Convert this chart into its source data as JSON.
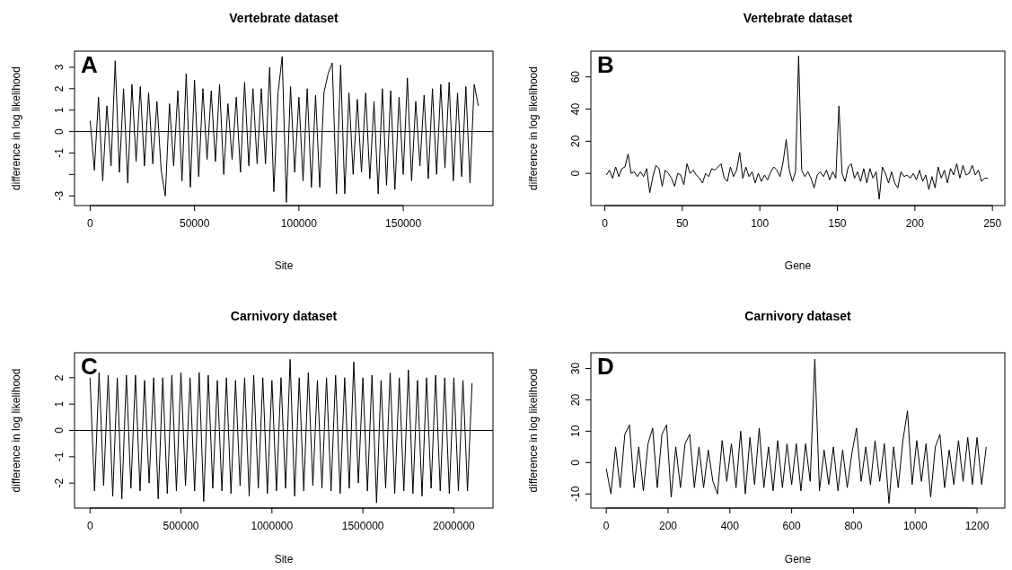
{
  "chart_data": [
    {
      "type": "line",
      "title": "Vertebrate dataset",
      "xlabel": "Site",
      "ylabel": "difference in log likelihood",
      "annotations": [
        "A"
      ],
      "xlim": [
        -7500,
        193000
      ],
      "xticks": [
        0,
        50000,
        100000,
        150000
      ],
      "ylim": [
        -3.45,
        3.75
      ],
      "yticks": [
        -3,
        {
          "value": -2,
          "label": null
        },
        -1,
        0,
        1,
        2,
        3
      ],
      "ref_lines": [
        {
          "axis": "y",
          "value": 0,
          "color": "#000000"
        }
      ],
      "series": [
        {
          "color": "#000000",
          "x": [
            0,
            2000,
            4000,
            6000,
            8000,
            10000,
            12000,
            14000,
            16000,
            18000,
            20000,
            22000,
            24000,
            26000,
            28000,
            30000,
            32000,
            34000,
            36000,
            38000,
            40000,
            42000,
            44000,
            46000,
            48000,
            50000,
            52000,
            54000,
            56000,
            58000,
            60000,
            62000,
            64000,
            66000,
            68000,
            70000,
            72000,
            74000,
            76000,
            78000,
            80000,
            82000,
            84000,
            86000,
            88000,
            90000,
            92000,
            94000,
            96000,
            98000,
            100000,
            102000,
            104000,
            106000,
            108000,
            110000,
            112000,
            114000,
            116000,
            118000,
            120000,
            122000,
            124000,
            126000,
            128000,
            130000,
            132000,
            134000,
            136000,
            138000,
            140000,
            142000,
            144000,
            146000,
            148000,
            150000,
            152000,
            154000,
            156000,
            158000,
            160000,
            162000,
            164000,
            166000,
            168000,
            170000,
            172000,
            174000,
            176000,
            178000,
            180000,
            182000,
            184000,
            186000
          ],
          "values": [
            0.5,
            -1.8,
            1.6,
            -2.3,
            1.2,
            -1.6,
            3.3,
            -1.9,
            2.0,
            -2.4,
            2.2,
            -1.4,
            2.1,
            -1.6,
            1.8,
            -1.5,
            1.4,
            -1.8,
            -3.0,
            1.3,
            -1.6,
            1.9,
            -2.3,
            2.7,
            -2.6,
            2.4,
            -2.1,
            2.0,
            -1.3,
            1.9,
            -1.4,
            2.2,
            -2.0,
            1.3,
            -1.3,
            1.6,
            -1.9,
            2.3,
            -1.6,
            2.0,
            -1.5,
            2.0,
            -1.5,
            3.0,
            -2.8,
            1.8,
            3.5,
            -3.3,
            2.1,
            -1.9,
            1.6,
            -2.3,
            2.0,
            -2.6,
            1.7,
            -2.6,
            1.8,
            2.7,
            3.2,
            -2.9,
            3.1,
            -2.9,
            1.8,
            -2.0,
            1.5,
            -1.9,
            1.8,
            -2.2,
            1.4,
            -2.9,
            2.0,
            -2.5,
            1.9,
            -2.7,
            1.6,
            -2.0,
            2.5,
            -2.3,
            1.4,
            -1.6,
            1.7,
            -2.2,
            2.0,
            -2.0,
            2.2,
            -1.7,
            2.3,
            -2.3,
            1.8,
            -2.1,
            2.1,
            -2.4,
            2.2,
            1.2
          ]
        }
      ]
    },
    {
      "type": "line",
      "title": "Vertebrate dataset",
      "xlabel": "Gene",
      "ylabel": "difference in log likelihood",
      "annotations": [
        "B"
      ],
      "xlim": [
        -9,
        258
      ],
      "xticks": [
        0,
        50,
        100,
        150,
        200,
        250
      ],
      "ylim": [
        -20,
        76
      ],
      "yticks": [
        0,
        20,
        40,
        60
      ],
      "series": [
        {
          "color": "#000000",
          "x": [
            1,
            3,
            5,
            7,
            9,
            11,
            13,
            15,
            17,
            19,
            21,
            23,
            25,
            27,
            29,
            31,
            33,
            35,
            37,
            39,
            41,
            43,
            45,
            47,
            49,
            51,
            53,
            55,
            57,
            59,
            61,
            63,
            65,
            67,
            69,
            71,
            73,
            75,
            77,
            79,
            81,
            83,
            85,
            87,
            89,
            91,
            93,
            95,
            97,
            99,
            101,
            103,
            105,
            107,
            109,
            111,
            113,
            115,
            117,
            119,
            121,
            123,
            125,
            127,
            129,
            131,
            133,
            135,
            137,
            139,
            141,
            143,
            145,
            147,
            149,
            151,
            153,
            155,
            157,
            159,
            161,
            163,
            165,
            167,
            169,
            171,
            173,
            175,
            177,
            179,
            181,
            183,
            185,
            187,
            189,
            191,
            193,
            195,
            197,
            199,
            201,
            203,
            205,
            207,
            209,
            211,
            213,
            215,
            217,
            219,
            221,
            223,
            225,
            227,
            229,
            231,
            233,
            235,
            237,
            239,
            241,
            243,
            245,
            247
          ],
          "values": [
            -1,
            2,
            -3,
            4,
            -2,
            3,
            4,
            12,
            0,
            1,
            -2,
            1,
            -2,
            3,
            -12,
            -2,
            5,
            3,
            -8,
            2,
            0,
            -3,
            -8,
            0,
            -1,
            -7,
            6,
            0,
            2,
            -1,
            -3,
            -6,
            0,
            -2,
            3,
            2,
            4,
            6,
            -3,
            -5,
            4,
            -2,
            2,
            13,
            -3,
            4,
            -2,
            1,
            -6,
            0,
            -5,
            -1,
            -4,
            1,
            4,
            2,
            -2,
            7,
            21,
            2,
            -5,
            1,
            73,
            2,
            -2,
            1,
            -3,
            -9,
            -1,
            1,
            -2,
            2,
            -4,
            1,
            -3,
            42,
            0,
            -5,
            4,
            6,
            -3,
            1,
            -5,
            3,
            -6,
            3,
            -3,
            1,
            -16,
            4,
            0,
            -6,
            1,
            -6,
            -9,
            1,
            -2,
            -1,
            -3,
            0,
            -4,
            2,
            -5,
            -1,
            -10,
            -2,
            -9,
            4,
            -3,
            2,
            -6,
            3,
            -1,
            6,
            -3,
            5,
            -1,
            0,
            5,
            -1,
            2,
            -5,
            -3,
            -3
          ]
        }
      ]
    },
    {
      "type": "line",
      "title": "Carnivory dataset",
      "xlabel": "Site",
      "ylabel": "difference in log likelihood",
      "annotations": [
        "C"
      ],
      "xlim": [
        -85000,
        2215000
      ],
      "xticks": [
        0,
        500000,
        1000000,
        1500000,
        2000000
      ],
      "ylim": [
        -2.95,
        2.95
      ],
      "yticks": [
        -2,
        -1,
        0,
        1,
        2
      ],
      "ref_lines": [
        {
          "axis": "y",
          "value": 0,
          "color": "#000000"
        }
      ],
      "series": [
        {
          "color": "#000000",
          "x": [
            0,
            25000,
            50000,
            75000,
            100000,
            125000,
            150000,
            175000,
            200000,
            225000,
            250000,
            275000,
            300000,
            325000,
            350000,
            375000,
            400000,
            425000,
            450000,
            475000,
            500000,
            525000,
            550000,
            575000,
            600000,
            625000,
            650000,
            675000,
            700000,
            725000,
            750000,
            775000,
            800000,
            825000,
            850000,
            875000,
            900000,
            925000,
            950000,
            975000,
            1000000,
            1025000,
            1050000,
            1075000,
            1100000,
            1125000,
            1150000,
            1175000,
            1200000,
            1225000,
            1250000,
            1275000,
            1300000,
            1325000,
            1350000,
            1375000,
            1400000,
            1425000,
            1450000,
            1475000,
            1500000,
            1525000,
            1550000,
            1575000,
            1600000,
            1625000,
            1650000,
            1675000,
            1700000,
            1725000,
            1750000,
            1775000,
            1800000,
            1825000,
            1850000,
            1875000,
            1900000,
            1925000,
            1950000,
            1975000,
            2000000,
            2025000,
            2050000,
            2075000,
            2100000
          ],
          "values": [
            2.0,
            -2.3,
            2.2,
            -2.1,
            2.1,
            -2.5,
            2.0,
            -2.6,
            2.1,
            -2.2,
            2.1,
            -2.3,
            1.9,
            -2.0,
            2.0,
            -2.6,
            2.0,
            -2.4,
            2.1,
            -2.3,
            2.2,
            -2.1,
            2.0,
            -2.3,
            2.2,
            -2.7,
            2.1,
            -2.2,
            1.9,
            -2.3,
            2.0,
            -2.4,
            1.9,
            -2.1,
            2.0,
            -2.5,
            2.1,
            -2.2,
            2.0,
            -2.4,
            1.9,
            -2.3,
            2.0,
            -2.2,
            2.7,
            -2.5,
            2.0,
            -2.3,
            2.2,
            -2.1,
            1.9,
            -2.2,
            2.0,
            -2.3,
            2.1,
            -2.4,
            2.0,
            -2.2,
            2.6,
            -2.0,
            2.0,
            -2.3,
            2.1,
            -2.75,
            1.9,
            -2.2,
            2.2,
            -2.4,
            2.0,
            -2.3,
            2.3,
            -2.4,
            1.9,
            -2.5,
            2.0,
            -2.2,
            2.1,
            -2.3,
            2.0,
            -2.4,
            2.0,
            -2.3,
            1.9,
            -2.3,
            1.8
          ]
        }
      ]
    },
    {
      "type": "line",
      "title": "Carnivory dataset",
      "xlabel": "Gene",
      "ylabel": "difference in log likelihood",
      "annotations": [
        "D"
      ],
      "xlim": [
        -50,
        1290
      ],
      "xticks": [
        0,
        200,
        400,
        600,
        800,
        1000,
        1200
      ],
      "ylim": [
        -14.5,
        35
      ],
      "yticks": [
        -10,
        0,
        10,
        20,
        30
      ],
      "series": [
        {
          "color": "#000000",
          "x": [
            0,
            15,
            30,
            45,
            60,
            75,
            90,
            105,
            120,
            135,
            150,
            165,
            180,
            195,
            210,
            225,
            240,
            255,
            270,
            285,
            300,
            315,
            330,
            345,
            360,
            375,
            390,
            405,
            420,
            435,
            450,
            465,
            480,
            495,
            510,
            525,
            540,
            555,
            570,
            585,
            600,
            615,
            630,
            645,
            660,
            675,
            690,
            705,
            720,
            735,
            750,
            765,
            780,
            795,
            810,
            825,
            840,
            855,
            870,
            885,
            900,
            915,
            930,
            945,
            960,
            975,
            990,
            1005,
            1020,
            1035,
            1050,
            1065,
            1080,
            1095,
            1110,
            1125,
            1140,
            1155,
            1170,
            1185,
            1200,
            1215,
            1230
          ],
          "values": [
            -2,
            -10,
            5,
            -8,
            9,
            12,
            -8,
            5,
            -9,
            6,
            11,
            -8,
            9,
            12,
            -11,
            5,
            -8,
            6,
            9,
            -8,
            5,
            -8,
            4,
            -6,
            -10,
            7,
            -6,
            6,
            -8,
            10,
            -10,
            8,
            -7,
            11,
            -8,
            5,
            -9,
            7,
            -8,
            6,
            -7,
            6,
            -9,
            6,
            -6,
            33,
            -9,
            4,
            -7,
            5,
            -9,
            4,
            -8,
            3,
            11,
            -6,
            5,
            -7,
            7,
            -6,
            6,
            -13,
            5,
            -8,
            7,
            16.5,
            -7,
            7,
            -6,
            6,
            -11,
            5,
            9,
            -8,
            4,
            -7,
            7,
            -6,
            8,
            -7,
            8,
            -7,
            5
          ]
        }
      ]
    }
  ]
}
